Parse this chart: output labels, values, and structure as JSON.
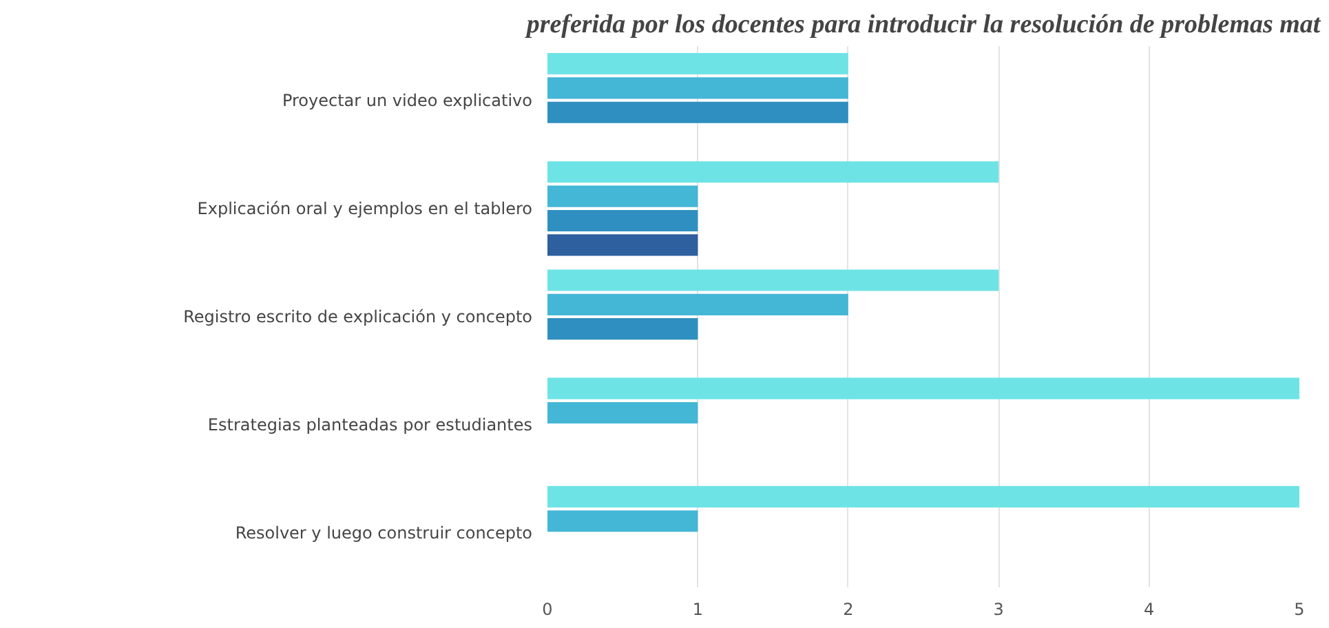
{
  "chart_data": {
    "type": "bar",
    "orientation": "horizontal",
    "title": "preferida por los docentes para introducir la resolución de problemas mat",
    "categories": [
      "Proyectar un video explicativo",
      "Explicación oral y ejemplos en el tablero",
      "Registro escrito de explicación y concepto",
      "Estrategias planteadas por estudiantes",
      "Resolver y luego construir concepto"
    ],
    "series": [
      {
        "color": "#6ee3e6",
        "values": [
          2,
          3,
          3,
          5,
          5
        ]
      },
      {
        "color": "#44b6d6",
        "values": [
          2,
          1,
          2,
          1,
          1
        ]
      },
      {
        "color": "#2f8fc0",
        "values": [
          2,
          1,
          1,
          null,
          null
        ]
      },
      {
        "color": "#2e5f9e",
        "values": [
          null,
          1,
          null,
          null,
          null
        ]
      }
    ],
    "xlim": [
      0,
      5
    ],
    "xticks": [
      0,
      1,
      2,
      3,
      4,
      5
    ],
    "grid": "x",
    "legend": false
  }
}
